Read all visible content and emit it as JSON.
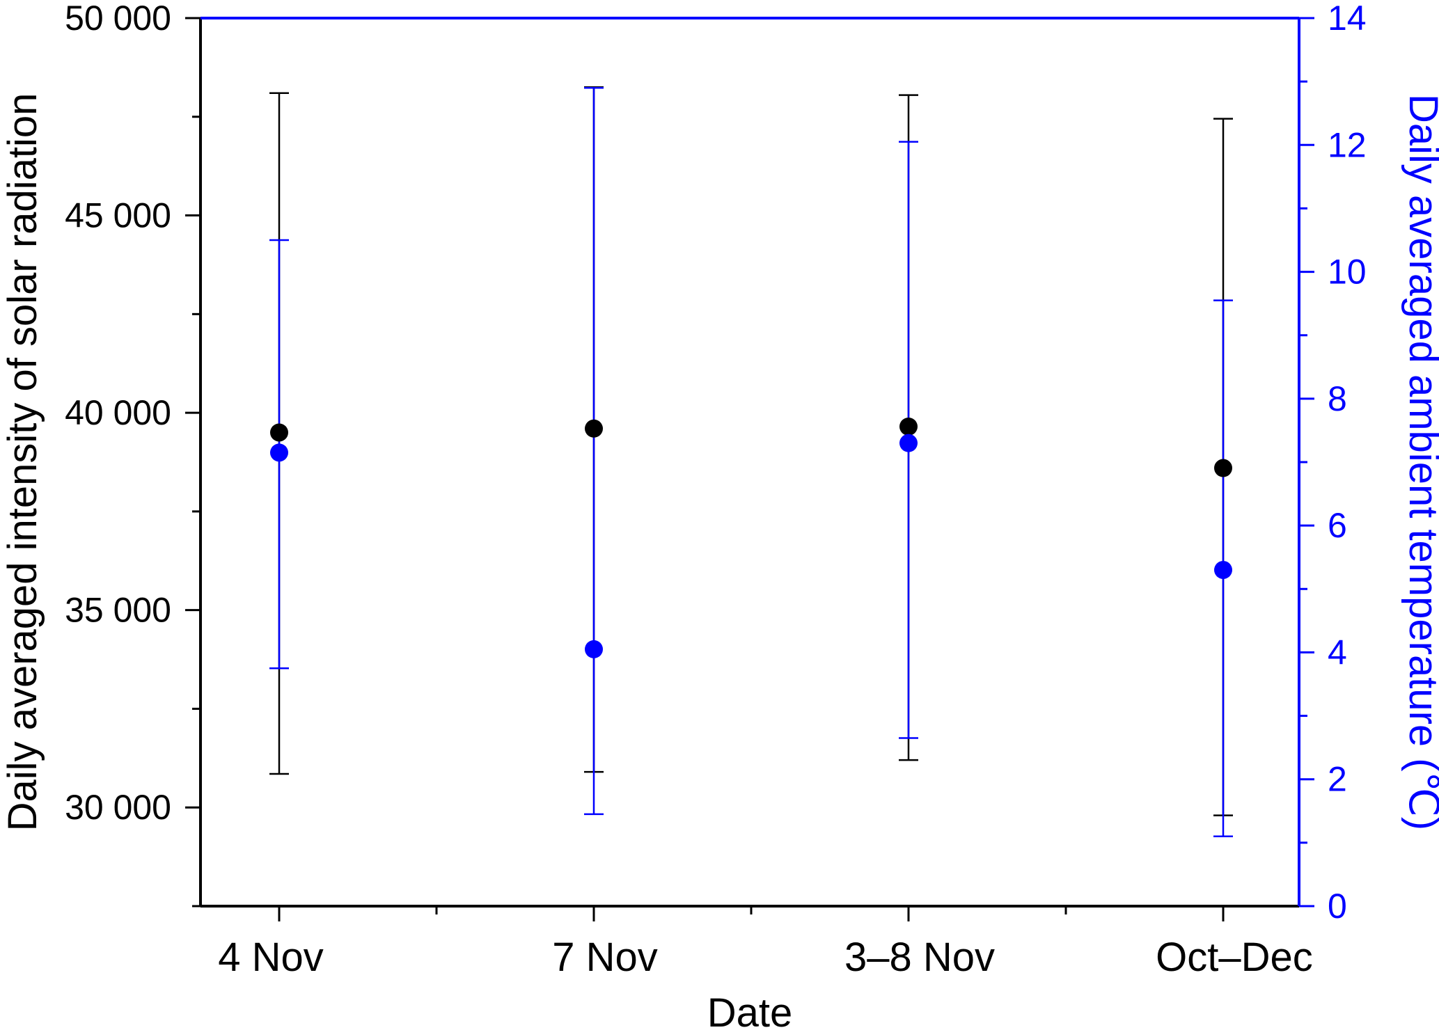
{
  "chart_data": {
    "type": "scatter",
    "title": "",
    "xlabel": "Date",
    "ylabel": "Daily averaged intensity of solar radiation",
    "y2label": "Daily averaged ambient temperature (℃)",
    "categories": [
      "4 Nov",
      "7 Nov",
      "3–8 Nov",
      "Oct–Dec"
    ],
    "ylim": [
      27500,
      50000
    ],
    "y2lim": [
      0,
      14
    ],
    "yticks": [
      30000,
      35000,
      40000,
      45000,
      50000
    ],
    "ytick_labels": [
      "30 000",
      "35 000",
      "40 000",
      "45 000",
      "50 000"
    ],
    "y2ticks": [
      0,
      2,
      4,
      6,
      8,
      10,
      12,
      14
    ],
    "y2tick_labels": [
      "0",
      "2",
      "4",
      "6",
      "8",
      "10",
      "12",
      "14"
    ],
    "grid": false,
    "series": [
      {
        "axis": "left",
        "color": "#000000",
        "values": [
          39500,
          39600,
          39650,
          38600
        ],
        "err_low": [
          30850,
          30900,
          31200,
          29800
        ],
        "err_high": [
          48100,
          48250,
          48050,
          47450
        ]
      },
      {
        "axis": "right",
        "color": "#0000ff",
        "values": [
          7.15,
          4.05,
          7.3,
          5.3
        ],
        "err_low": [
          3.75,
          1.45,
          2.65,
          1.1
        ],
        "err_high": [
          10.5,
          12.9,
          12.05,
          9.55
        ]
      }
    ]
  }
}
